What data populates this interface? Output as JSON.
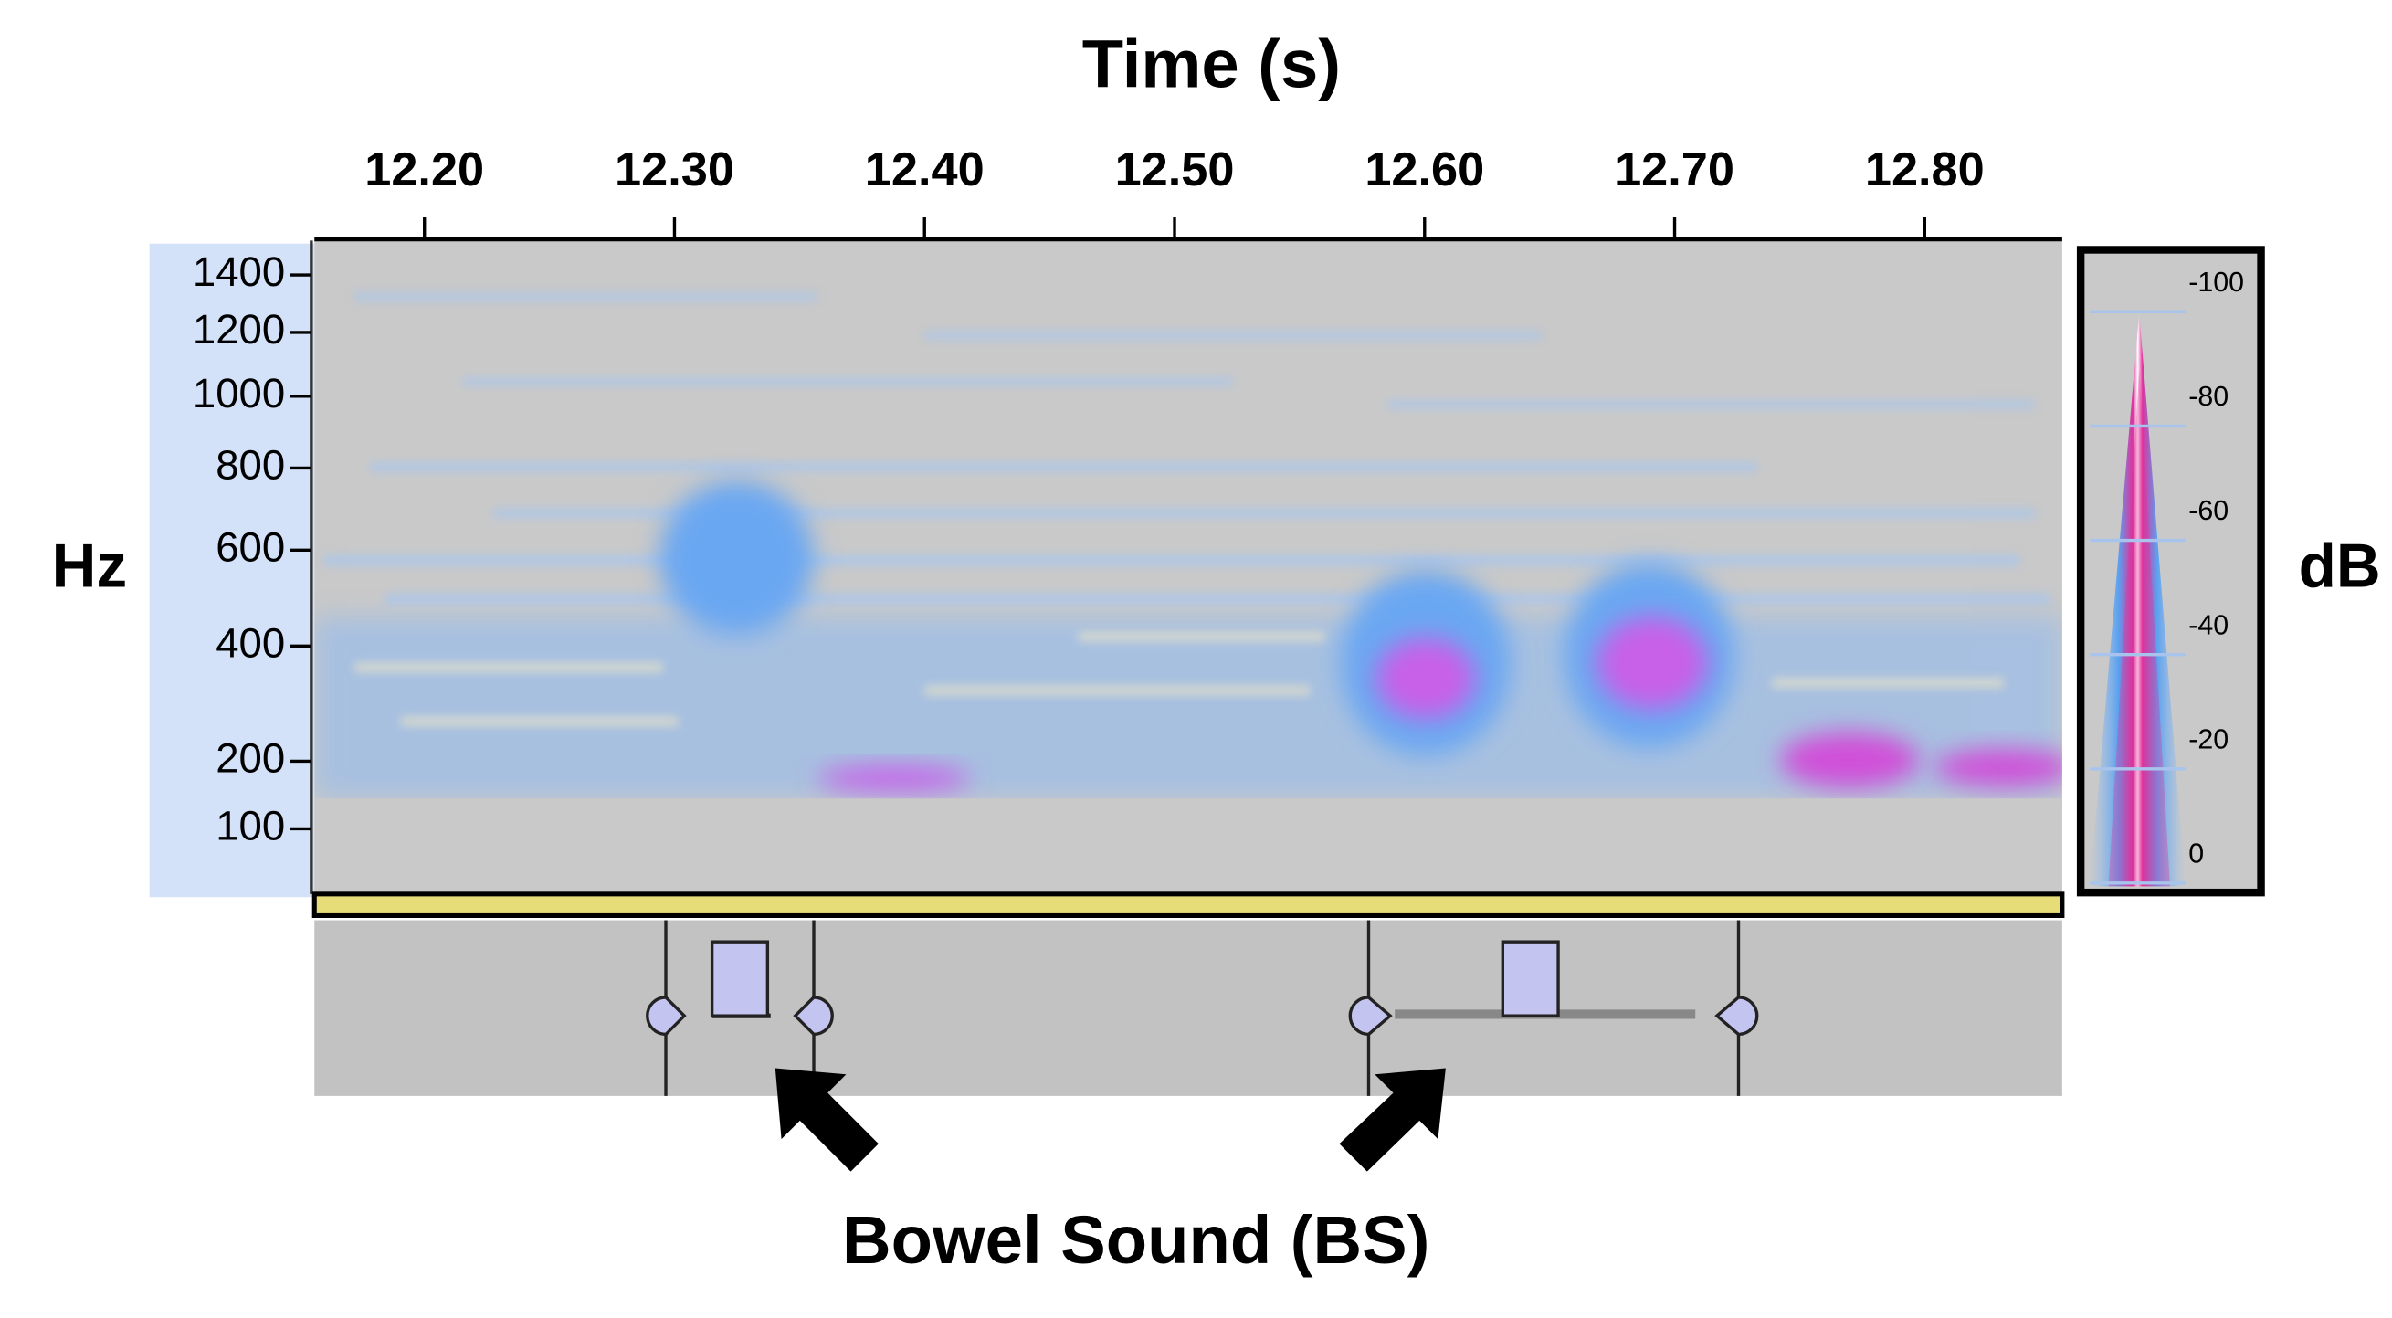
{
  "chart_data": {
    "type": "spectrogram",
    "title": "Time (s)",
    "y_label": "Hz",
    "colorbar_label": "dB",
    "annotation": "Bowel Sound (BS)",
    "xlim": [
      12.156,
      12.855
    ],
    "xticks": [
      {
        "value": 12.2,
        "label": "12.20"
      },
      {
        "value": 12.3,
        "label": "12.30"
      },
      {
        "value": 12.4,
        "label": "12.40"
      },
      {
        "value": 12.5,
        "label": "12.50"
      },
      {
        "value": 12.6,
        "label": "12.60"
      },
      {
        "value": 12.7,
        "label": "12.70"
      },
      {
        "value": 12.8,
        "label": "12.80"
      }
    ],
    "yscale": "mel",
    "ylim": [
      14,
      1530
    ],
    "yticks": [
      100,
      200,
      400,
      600,
      800,
      1000,
      1200,
      1400
    ],
    "clim": [
      6.5,
      -106
    ],
    "cticks": [
      -100,
      -80,
      -60,
      -40,
      -20,
      0
    ]
  }
}
